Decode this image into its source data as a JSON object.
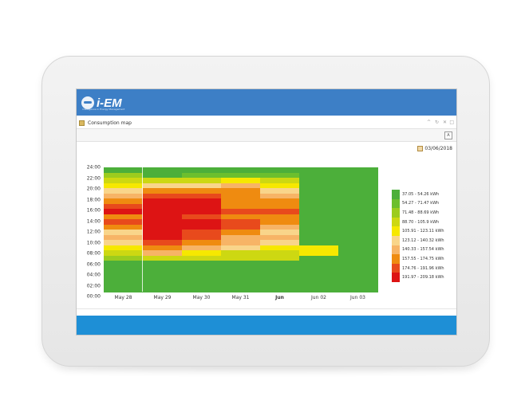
{
  "app": {
    "logo_text": "i-EM",
    "logo_tagline": "intelligence in Energy Management"
  },
  "panel": {
    "title": "Consumption map",
    "buttons": [
      "^",
      "↻",
      "✕",
      "□"
    ],
    "toolbar_button": "A",
    "date": "03/06/2018"
  },
  "colors": {
    "header_blue": "#3d7fc6",
    "footer_blue": "#1e8fd6",
    "background_green": "#4caf3a"
  },
  "chart_data": {
    "type": "heatmap",
    "x_categories": [
      "May 28",
      "May 29",
      "May 30",
      "May 31",
      "Jun",
      "Jun 02",
      "Jun 03"
    ],
    "y_ticks": [
      "24:00",
      "22:00",
      "20:00",
      "18:00",
      "16:00",
      "14:00",
      "12:00",
      "10:00",
      "08:00",
      "06:00",
      "04:00",
      "02:00",
      "00:00"
    ],
    "legend": [
      {
        "label": "37.05 - 54.26 kWh",
        "color": "#4caf3a"
      },
      {
        "label": "54.27 - 71.47 kWh",
        "color": "#6cbf2e"
      },
      {
        "label": "71.48 - 88.69 kWh",
        "color": "#9ccc1e"
      },
      {
        "label": "88.70 - 105.9 kWh",
        "color": "#cdd812"
      },
      {
        "label": "105.91 - 123.11 kWh",
        "color": "#f6e800"
      },
      {
        "label": "123.12 - 140.32 kWh",
        "color": "#f9d58a"
      },
      {
        "label": "140.33 - 157.54 kWh",
        "color": "#f7b466"
      },
      {
        "label": "157.55 - 174.75 kWh",
        "color": "#ef8b10"
      },
      {
        "label": "174.76 - 191.96 kWh",
        "color": "#e84a1c"
      },
      {
        "label": "191.97 - 209.18 kWh",
        "color": "#dd1414"
      }
    ],
    "columns": [
      {
        "category": "May 28",
        "bins_from_top": [
          0,
          2,
          3,
          4,
          5,
          6,
          7,
          8,
          9,
          7,
          8,
          7,
          5,
          6,
          5,
          4,
          3,
          2,
          0,
          0,
          0,
          0,
          0,
          0
        ]
      },
      {
        "category": "May 29",
        "bins_from_top": [
          0,
          0,
          3,
          5,
          7,
          8,
          9,
          9,
          9,
          9,
          9,
          9,
          9,
          9,
          8,
          7,
          6,
          3,
          0,
          0,
          0,
          0,
          0,
          0
        ]
      },
      {
        "category": "May 30",
        "bins_from_top": [
          0,
          1,
          3,
          5,
          7,
          8,
          9,
          9,
          9,
          8,
          9,
          9,
          8,
          8,
          7,
          6,
          4,
          3,
          0,
          0,
          0,
          0,
          0,
          0
        ]
      },
      {
        "category": "May 31",
        "bins_from_top": [
          0,
          1,
          4,
          6,
          7,
          7,
          7,
          7,
          8,
          7,
          8,
          8,
          7,
          6,
          6,
          5,
          3,
          3,
          0,
          0,
          0,
          0,
          0,
          0
        ]
      },
      {
        "category": "Jun",
        "bins_from_top": [
          0,
          1,
          3,
          4,
          5,
          6,
          7,
          7,
          8,
          7,
          7,
          6,
          5,
          6,
          5,
          4,
          3,
          3,
          0,
          0,
          0,
          0,
          0,
          0
        ]
      },
      {
        "category": "Jun 02",
        "bins_from_top": [
          0,
          0,
          0,
          0,
          0,
          0,
          0,
          0,
          0,
          0,
          0,
          0,
          0,
          0,
          0,
          4,
          4,
          0,
          0,
          0,
          0,
          0,
          0,
          0
        ]
      },
      {
        "category": "Jun 03",
        "bins_from_top": [
          0,
          0,
          0,
          0,
          0,
          0,
          0,
          0,
          0,
          0,
          0,
          0,
          0,
          0,
          0,
          0,
          0,
          0,
          0,
          0,
          0,
          0,
          0,
          0
        ]
      }
    ]
  }
}
